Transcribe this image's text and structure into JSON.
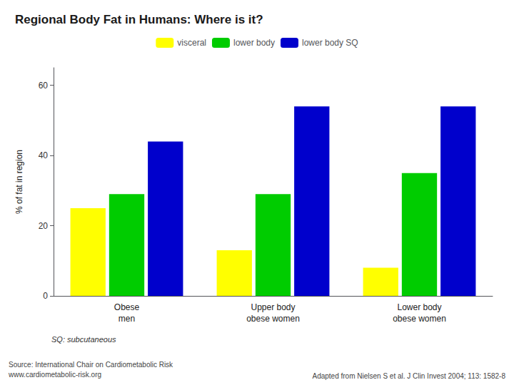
{
  "chart_data": {
    "type": "bar",
    "title": "Regional Body Fat in Humans: Where is it?",
    "categories": [
      "Obese\nmen",
      "Upper body\nobese women",
      "Lower body\nobese women"
    ],
    "series": [
      {
        "name": "visceral",
        "color": "#FFFF00",
        "values": [
          25,
          13,
          8
        ]
      },
      {
        "name": "lower body",
        "color": "#00CC00",
        "values": [
          29,
          29,
          35
        ]
      },
      {
        "name": "lower body SQ",
        "color": "#0000CC",
        "values": [
          44,
          54,
          54
        ]
      }
    ],
    "ylabel": "% of fat in region",
    "ylim": [
      0,
      65
    ],
    "yticks": [
      0,
      20,
      40,
      60
    ],
    "grid": false,
    "legend": "top",
    "annotations": [
      "SQ: subcutaneous",
      "Source: International Chair on Cardiometabolic Risk\nwww.cardiometabolic-risk.org",
      "Adapted from Nielsen S et al. J Clin Invest 2004; 113: 1582-8"
    ]
  }
}
